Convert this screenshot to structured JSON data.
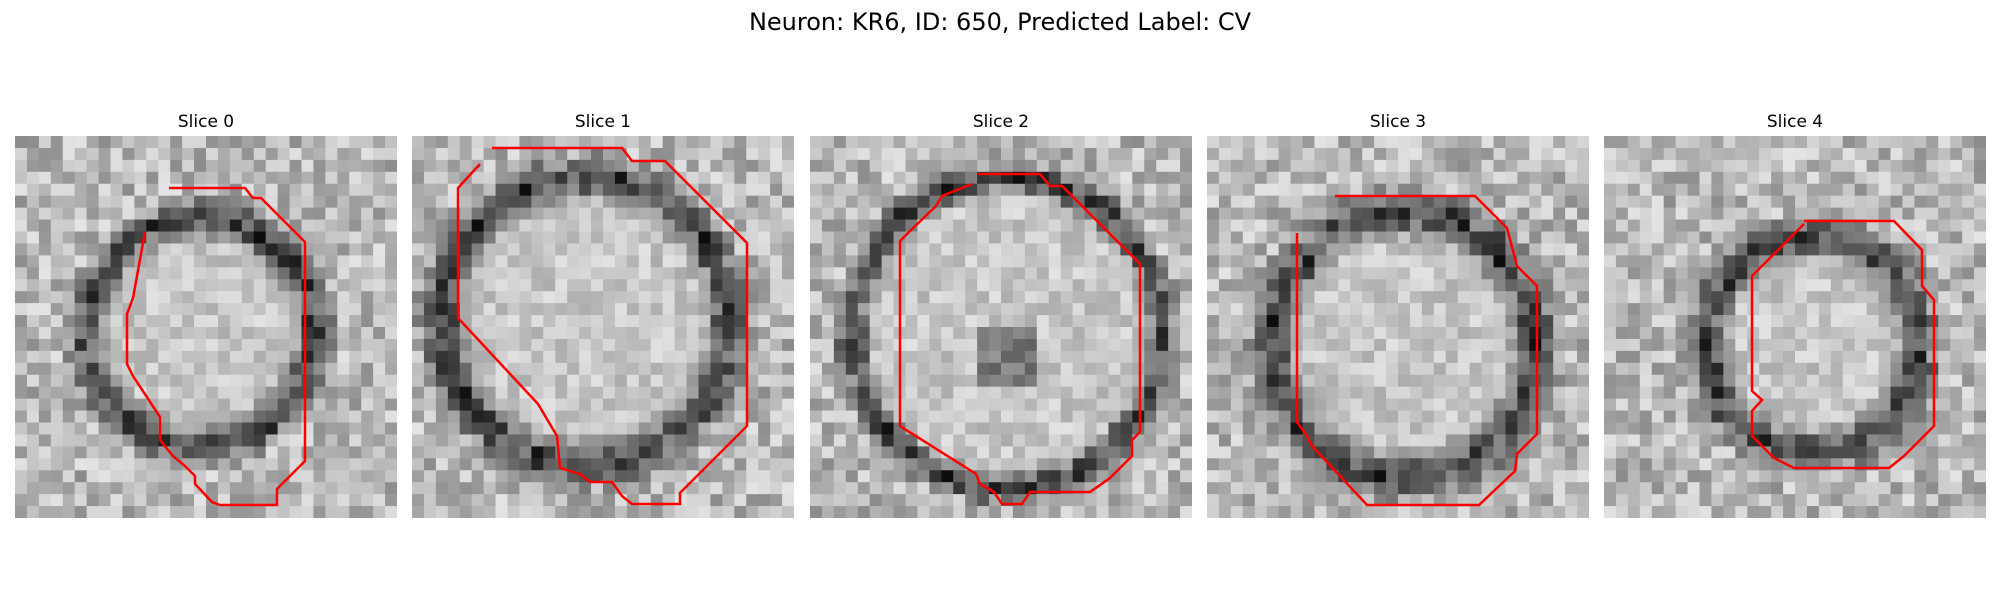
{
  "figure": {
    "title": "Neuron: KR6, ID: 650, Predicted Label: CV"
  },
  "panels": [
    {
      "title": "Slice 0"
    },
    {
      "title": "Slice 1"
    },
    {
      "title": "Slice 2"
    },
    {
      "title": "Slice 3"
    },
    {
      "title": "Slice 4"
    }
  ],
  "colors": {
    "contour": "#ff0000",
    "background": "#ffffff"
  }
}
